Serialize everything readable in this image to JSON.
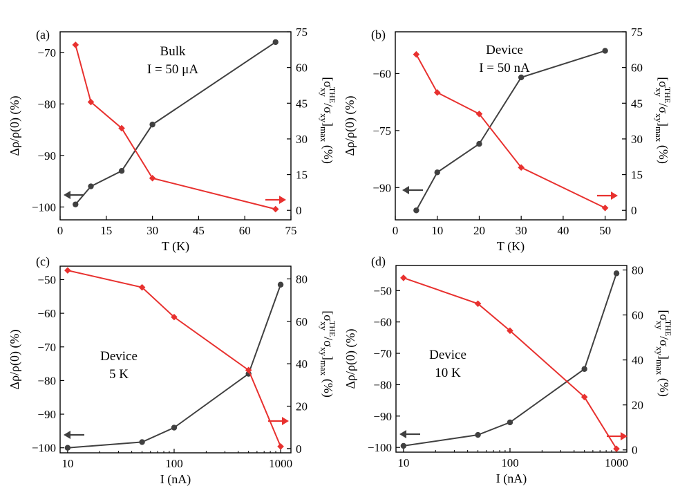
{
  "colors": {
    "left_series": "#404040",
    "right_series": "#e8312f",
    "axes": "#000000"
  },
  "chart_data": [
    {
      "panel": "(a)",
      "type": "line",
      "annotation": [
        "Bulk",
        "I = 50 μA"
      ],
      "xscale": "linear",
      "xlabel": "T (K)",
      "xlim": [
        0,
        75
      ],
      "xticks": [
        0,
        15,
        30,
        45,
        60,
        75
      ],
      "ylabel_left": "Δρ/ρ(0) (%)",
      "ylim_left": [
        -102.5,
        -66
      ],
      "yticks_left": [
        -100,
        -90,
        -80,
        -70
      ],
      "ylabel_right": "[σxy^THE/σxy]max (%)",
      "ylim_right": [
        -4,
        75
      ],
      "yticks_right": [
        0,
        15,
        30,
        45,
        60,
        75
      ],
      "series": [
        {
          "name": "Δρ/ρ(0)",
          "axis": "left",
          "marker": "circle",
          "x": [
            5,
            10,
            20,
            30,
            70
          ],
          "y": [
            -99.5,
            -96,
            -93,
            -84,
            -68
          ]
        },
        {
          "name": "[σxy^THE/σxy]max",
          "axis": "right",
          "marker": "diamond",
          "x": [
            5,
            10,
            20,
            30,
            70
          ],
          "y": [
            69.5,
            45.5,
            34.5,
            13.5,
            0.5
          ]
        }
      ],
      "arrows": {
        "left": "pointing left",
        "right": "pointing right"
      }
    },
    {
      "panel": "(b)",
      "type": "line",
      "annotation": [
        "Device",
        "I = 50 nA"
      ],
      "xscale": "linear",
      "xlabel": "T (K)",
      "xlim": [
        0,
        55
      ],
      "xticks": [
        0,
        10,
        20,
        30,
        40,
        50
      ],
      "ylabel_left": "Δρ/ρ(0) (%)",
      "ylim_left": [
        -98.5,
        -49
      ],
      "yticks_left": [
        -90,
        -75,
        -60
      ],
      "ylabel_right": "[σxy^THE/σxy]max (%)",
      "ylim_right": [
        -4,
        75
      ],
      "yticks_right": [
        0,
        15,
        30,
        45,
        60,
        75
      ],
      "series": [
        {
          "name": "Δρ/ρ(0)",
          "axis": "left",
          "marker": "circle",
          "x": [
            5,
            10,
            20,
            30,
            50
          ],
          "y": [
            -96,
            -86,
            -78.5,
            -61,
            -54
          ]
        },
        {
          "name": "[σxy^THE/σxy]max",
          "axis": "right",
          "marker": "diamond",
          "x": [
            5,
            10,
            20,
            30,
            50
          ],
          "y": [
            65.5,
            49.5,
            40.5,
            18,
            1
          ]
        }
      ],
      "arrows": {
        "left": "pointing left",
        "right": "pointing right"
      }
    },
    {
      "panel": "(c)",
      "type": "line",
      "annotation": [
        "Device",
        "5 K"
      ],
      "xscale": "log",
      "xlabel": "I (nA)",
      "xlim": [
        8.5,
        1250
      ],
      "xticks": [
        10,
        100,
        1000
      ],
      "ylabel_left": "Δρ/ρ(0) (%)",
      "ylim_left": [
        -101.5,
        -46
      ],
      "yticks_left": [
        -100,
        -90,
        -80,
        -70,
        -60,
        -50
      ],
      "ylabel_right": "[σxy^THE/σxy]max (%)",
      "ylim_right": [
        -2,
        86
      ],
      "yticks_right": [
        0,
        20,
        40,
        60,
        80
      ],
      "series": [
        {
          "name": "Δρ/ρ(0)",
          "axis": "left",
          "marker": "circle",
          "x": [
            10,
            50,
            100,
            500,
            1000
          ],
          "y": [
            -100,
            -98.3,
            -94,
            -78,
            -51.5
          ]
        },
        {
          "name": "[σxy^THE/σxy]max",
          "axis": "right",
          "marker": "diamond",
          "x": [
            10,
            50,
            100,
            500,
            1000
          ],
          "y": [
            84,
            76,
            62,
            37,
            1
          ]
        }
      ],
      "arrows": {
        "left": "pointing left",
        "right": "pointing right"
      }
    },
    {
      "panel": "(d)",
      "type": "line",
      "annotation": [
        "Device",
        "10 K"
      ],
      "xscale": "log",
      "xlabel": "I (nA)",
      "xlim": [
        8.5,
        1250
      ],
      "xticks": [
        10,
        100,
        1000
      ],
      "ylabel_left": "Δρ/ρ(0) (%)",
      "ylim_left": [
        -101.5,
        -42
      ],
      "yticks_left": [
        -100,
        -90,
        -80,
        -70,
        -60,
        -50
      ],
      "ylabel_right": "[σxy^THE/σxy]max (%)",
      "ylim_right": [
        -1,
        82
      ],
      "yticks_right": [
        0,
        20,
        40,
        60,
        80
      ],
      "series": [
        {
          "name": "Δρ/ρ(0)",
          "axis": "left",
          "marker": "circle",
          "x": [
            10,
            50,
            100,
            500,
            1000
          ],
          "y": [
            -99.5,
            -96,
            -92,
            -75,
            -44.5
          ]
        },
        {
          "name": "[σxy^THE/σxy]max",
          "axis": "right",
          "marker": "diamond",
          "x": [
            10,
            50,
            100,
            500,
            1000
          ],
          "y": [
            76.5,
            65,
            53,
            23.5,
            0.5
          ]
        }
      ],
      "arrows": {
        "left": "pointing left",
        "right": "pointing right"
      }
    }
  ]
}
